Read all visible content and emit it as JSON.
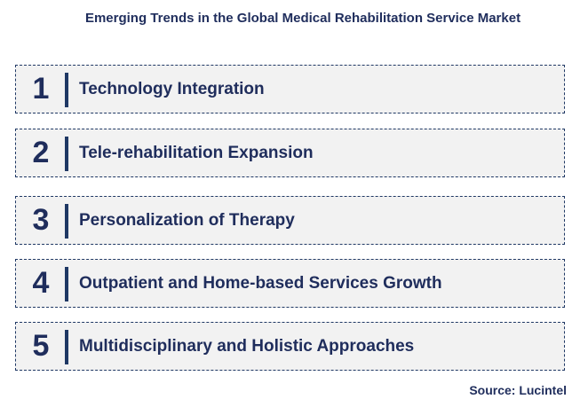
{
  "title": "Emerging Trends in the Global Medical Rehabilitation Service Market",
  "trends": [
    {
      "number": "1",
      "label": "Technology Integration"
    },
    {
      "number": "2",
      "label": "Tele-rehabilitation Expansion"
    },
    {
      "number": "3",
      "label": "Personalization of Therapy"
    },
    {
      "number": "4",
      "label": "Outpatient and Home-based Services Growth"
    },
    {
      "number": "5",
      "label": "Multidisciplinary and Holistic Approaches"
    }
  ],
  "source": "Source: Lucintel",
  "colors": {
    "text": "#1f2d5c",
    "border": "#1f3864",
    "box_fill": "#f2f2f2"
  }
}
